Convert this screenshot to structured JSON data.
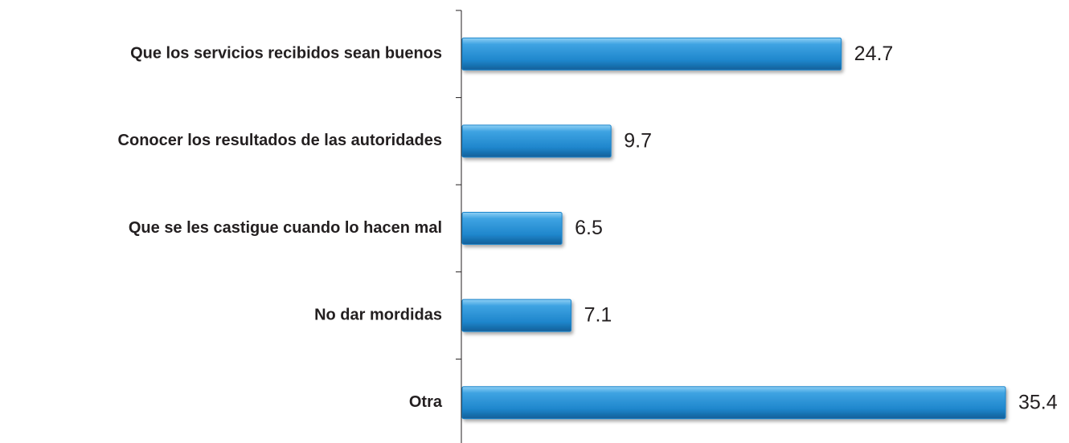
{
  "chart_data": {
    "type": "bar",
    "orientation": "horizontal",
    "categories": [
      "Que los servicios recibidos sean buenos",
      "Conocer los resultados de las autoridades",
      "Que se les castigue cuando lo hacen mal",
      "No dar mordidas",
      "Otra"
    ],
    "values": [
      24.7,
      9.7,
      6.5,
      7.1,
      35.4
    ],
    "color": "#1f86cc"
  }
}
